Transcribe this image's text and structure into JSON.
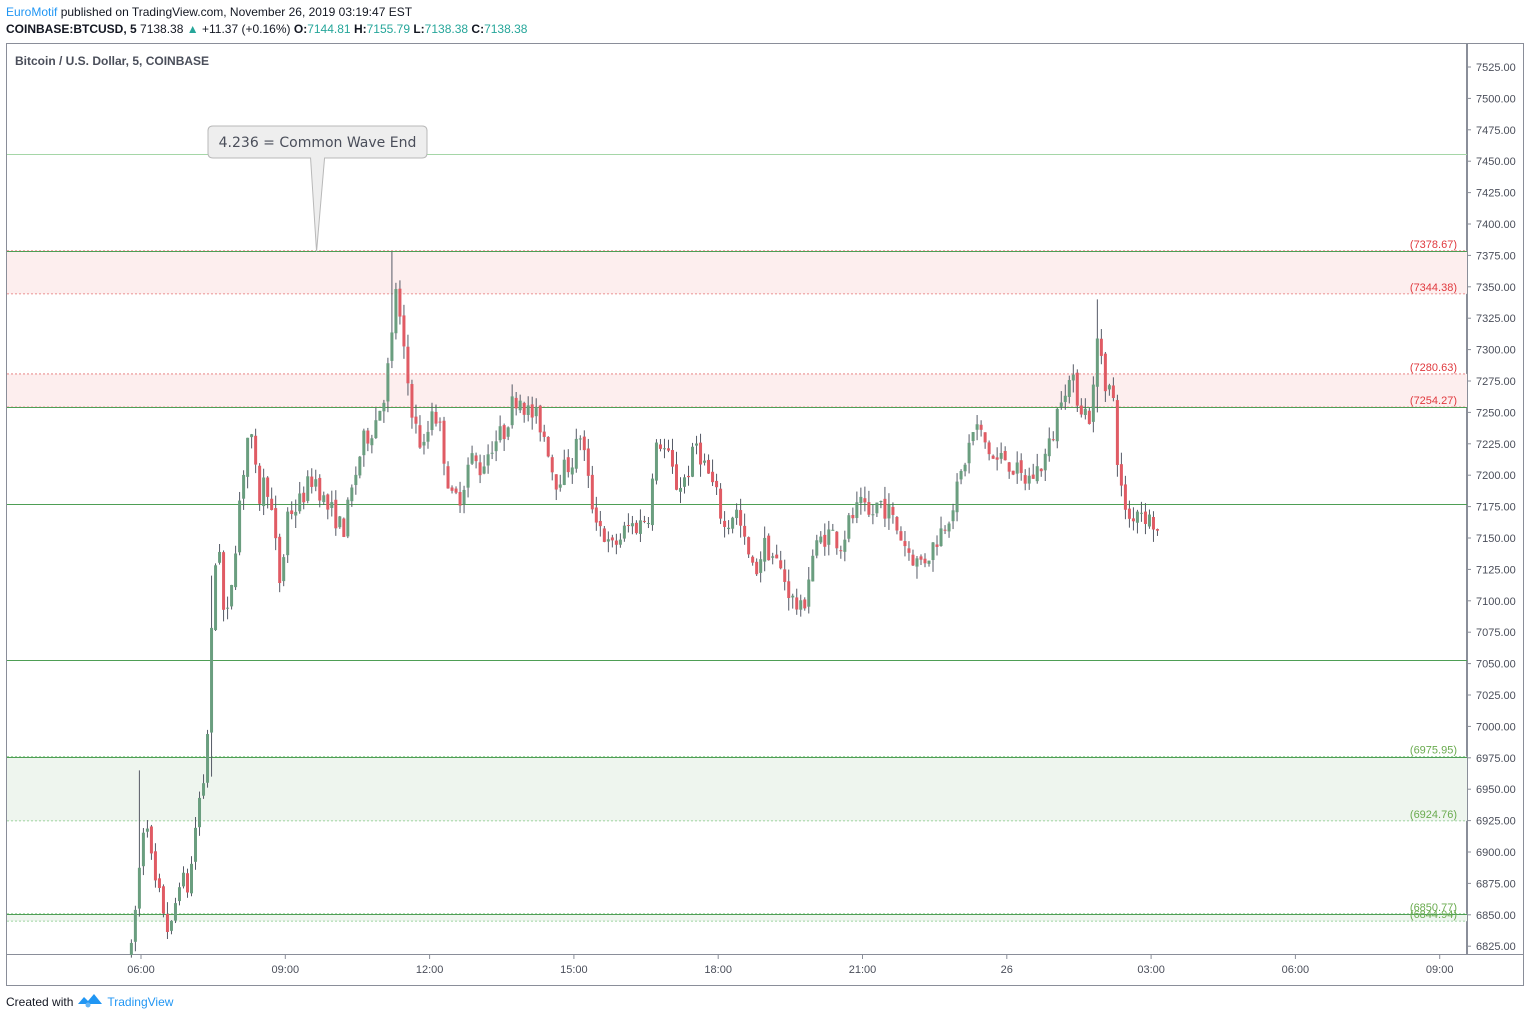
{
  "header": {
    "author": "EuroMotif",
    "published_text": "published on TradingView.com, November 26, 2019 03:19:47 EST",
    "symbol": "COINBASE:BTCUSD, 5",
    "last": "7138.38",
    "change_arrow": "▲",
    "change": "+11.37 (+0.16%)",
    "o_label": "O:",
    "o_value": "7144.81",
    "h_label": "H:",
    "h_value": "7155.79",
    "l_label": "L:",
    "l_value": "7138.38",
    "c_label": "C:",
    "c_value": "7138.38"
  },
  "chart_title": "Bitcoin / U.S. Dollar, 5, COINBASE",
  "callout": "4.236 = Common Wave End",
  "footer": {
    "created_with": "Created with",
    "brand": "TradingView"
  },
  "colors": {
    "up": "#6a9e7f",
    "down": "#e05b64",
    "red_zone": "#fdeeee",
    "green_zone": "#eef5ee",
    "level_line": "#4e9e55"
  },
  "chart_data": {
    "type": "candlestick",
    "title": "Bitcoin / U.S. Dollar, 5, COINBASE",
    "y_range": [
      6815,
      7545
    ],
    "y_ticks": [
      "7525.00",
      "7500.00",
      "7475.00",
      "7450.00",
      "7425.00",
      "7400.00",
      "7375.00",
      "7350.00",
      "7325.00",
      "7300.00",
      "7275.00",
      "7250.00",
      "7225.00",
      "7200.00",
      "7175.00",
      "7150.00",
      "7125.00",
      "7100.00",
      "7075.00",
      "7050.00",
      "7025.00",
      "7000.00",
      "6975.00",
      "6950.00",
      "6925.00",
      "6900.00",
      "6875.00",
      "6850.00",
      "6825.00"
    ],
    "x_ticks": [
      {
        "label": "06:00",
        "h": 6
      },
      {
        "label": "09:00",
        "h": 9
      },
      {
        "label": "12:00",
        "h": 12
      },
      {
        "label": "15:00",
        "h": 15
      },
      {
        "label": "18:00",
        "h": 18
      },
      {
        "label": "21:00",
        "h": 21
      },
      {
        "label": "26",
        "h": 24
      },
      {
        "label": "03:00",
        "h": 27
      },
      {
        "label": "06:00",
        "h": 30
      },
      {
        "label": "09:00",
        "h": 33
      }
    ],
    "zones": [
      {
        "from": 7344.38,
        "to": 7378.67,
        "color": "red"
      },
      {
        "from": 7254.27,
        "to": 7280.63,
        "color": "red"
      },
      {
        "from": 6924.76,
        "to": 6975.95,
        "color": "green"
      },
      {
        "from": 6844.94,
        "to": 6850.77,
        "color": "green"
      }
    ],
    "level_labels": [
      {
        "value": 7378.67,
        "text": "(7378.67)",
        "color": "red"
      },
      {
        "value": 7344.38,
        "text": "(7344.38)",
        "color": "red"
      },
      {
        "value": 7280.63,
        "text": "(7280.63)",
        "color": "red"
      },
      {
        "value": 7254.27,
        "text": "(7254.27)",
        "color": "red"
      },
      {
        "value": 6975.95,
        "text": "(6975.95)",
        "color": "green"
      },
      {
        "value": 6924.76,
        "text": "(6924.76)",
        "color": "green"
      },
      {
        "value": 6850.77,
        "text": "(6850.77)",
        "color": "green"
      },
      {
        "value": 6844.94,
        "text": "(6844.94)",
        "color": "green"
      }
    ],
    "horizontal_levels": [
      7456,
      7378.67,
      7254.27,
      7177,
      7053,
      6975.95,
      6850.77
    ],
    "callout_price": 7378,
    "callout_time_h": 9.65,
    "candles_start_h": 5.8,
    "candles_step_h": 0.08333,
    "path": [
      [
        5.8,
        6820
      ],
      [
        6.0,
        6900
      ],
      [
        6.1,
        6940
      ],
      [
        6.25,
        6880
      ],
      [
        6.5,
        6850
      ],
      [
        6.6,
        6830
      ],
      [
        6.8,
        6880
      ],
      [
        7.0,
        6870
      ],
      [
        7.1,
        6910
      ],
      [
        7.2,
        6940
      ],
      [
        7.35,
        6965
      ],
      [
        7.45,
        7060
      ],
      [
        7.6,
        7165
      ],
      [
        7.75,
        7070
      ],
      [
        7.95,
        7140
      ],
      [
        8.05,
        7180
      ],
      [
        8.15,
        7210
      ],
      [
        8.25,
        7240
      ],
      [
        8.45,
        7180
      ],
      [
        8.6,
        7200
      ],
      [
        8.75,
        7160
      ],
      [
        8.9,
        7110
      ],
      [
        9.05,
        7170
      ],
      [
        9.25,
        7175
      ],
      [
        9.45,
        7190
      ],
      [
        9.6,
        7200
      ],
      [
        9.85,
        7175
      ],
      [
        10.0,
        7170
      ],
      [
        10.2,
        7155
      ],
      [
        10.4,
        7190
      ],
      [
        10.6,
        7225
      ],
      [
        10.85,
        7240
      ],
      [
        11.05,
        7265
      ],
      [
        11.2,
        7300
      ],
      [
        11.3,
        7350
      ],
      [
        11.45,
        7300
      ],
      [
        11.6,
        7260
      ],
      [
        11.75,
        7230
      ],
      [
        11.9,
        7220
      ],
      [
        12.05,
        7255
      ],
      [
        12.2,
        7240
      ],
      [
        12.45,
        7180
      ],
      [
        12.65,
        7185
      ],
      [
        12.85,
        7215
      ],
      [
        13.05,
        7205
      ],
      [
        13.3,
        7225
      ],
      [
        13.55,
        7235
      ],
      [
        13.7,
        7255
      ],
      [
        13.85,
        7265
      ],
      [
        14.05,
        7250
      ],
      [
        14.25,
        7245
      ],
      [
        14.45,
        7225
      ],
      [
        14.6,
        7195
      ],
      [
        14.8,
        7205
      ],
      [
        14.95,
        7210
      ],
      [
        15.15,
        7235
      ],
      [
        15.35,
        7180
      ],
      [
        15.55,
        7160
      ],
      [
        15.75,
        7140
      ],
      [
        15.95,
        7150
      ],
      [
        16.15,
        7160
      ],
      [
        16.35,
        7160
      ],
      [
        16.55,
        7170
      ],
      [
        16.75,
        7230
      ],
      [
        16.95,
        7215
      ],
      [
        17.15,
        7190
      ],
      [
        17.35,
        7200
      ],
      [
        17.55,
        7225
      ],
      [
        17.75,
        7205
      ],
      [
        17.95,
        7185
      ],
      [
        18.15,
        7155
      ],
      [
        18.35,
        7175
      ],
      [
        18.55,
        7145
      ],
      [
        18.75,
        7120
      ],
      [
        18.95,
        7145
      ],
      [
        19.15,
        7135
      ],
      [
        19.35,
        7120
      ],
      [
        19.55,
        7100
      ],
      [
        19.75,
        7090
      ],
      [
        19.95,
        7135
      ],
      [
        20.15,
        7150
      ],
      [
        20.35,
        7155
      ],
      [
        20.55,
        7145
      ],
      [
        20.75,
        7165
      ],
      [
        20.95,
        7175
      ],
      [
        21.15,
        7165
      ],
      [
        21.35,
        7180
      ],
      [
        21.55,
        7170
      ],
      [
        21.75,
        7155
      ],
      [
        21.95,
        7140
      ],
      [
        22.15,
        7130
      ],
      [
        22.35,
        7135
      ],
      [
        22.55,
        7150
      ],
      [
        22.75,
        7165
      ],
      [
        22.95,
        7185
      ],
      [
        23.15,
        7215
      ],
      [
        23.35,
        7240
      ],
      [
        23.55,
        7225
      ],
      [
        23.75,
        7210
      ],
      [
        23.95,
        7215
      ],
      [
        24.15,
        7205
      ],
      [
        24.35,
        7195
      ],
      [
        24.55,
        7200
      ],
      [
        24.75,
        7210
      ],
      [
        24.95,
        7230
      ],
      [
        25.15,
        7270
      ],
      [
        25.35,
        7275
      ],
      [
        25.55,
        7255
      ],
      [
        25.75,
        7245
      ],
      [
        25.9,
        7315
      ],
      [
        26.05,
        7275
      ],
      [
        26.2,
        7265
      ],
      [
        26.35,
        7190
      ],
      [
        26.55,
        7165
      ],
      [
        26.75,
        7175
      ],
      [
        26.95,
        7165
      ],
      [
        27.1,
        7160
      ],
      [
        27.2,
        7140
      ]
    ]
  }
}
